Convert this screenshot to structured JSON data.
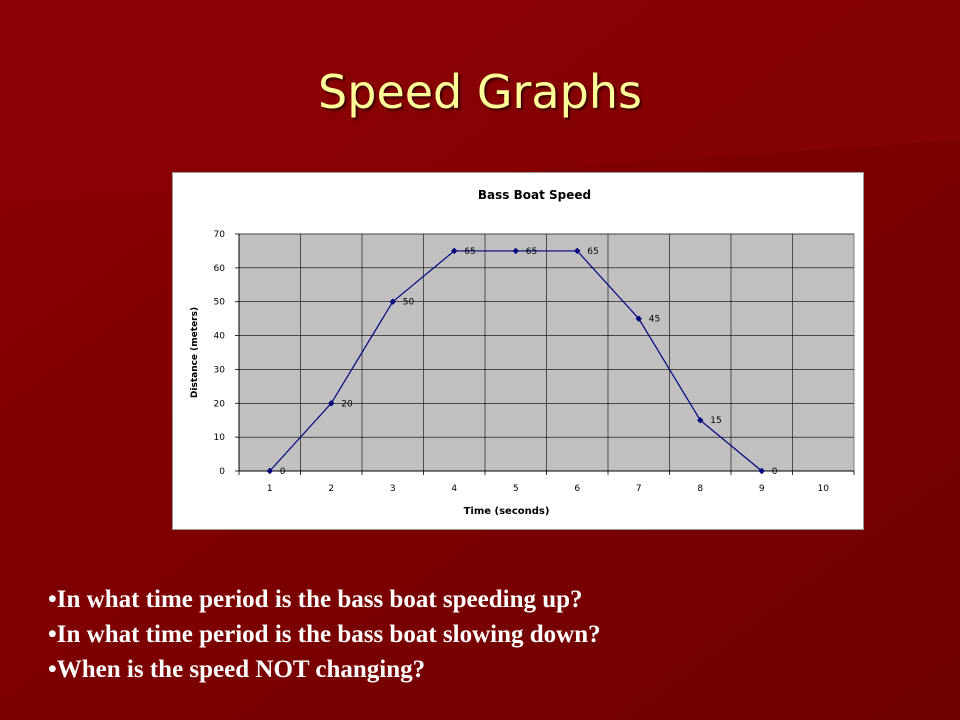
{
  "slide": {
    "title": "Speed Graphs",
    "questions": [
      "In what time period is the bass boat speeding up?",
      "In what time period is the bass boat slowing down?",
      "When is the speed NOT changing?"
    ]
  },
  "colors": {
    "background": "#7a0000",
    "title": "#ffff99",
    "plot_area": "#c0c0c0",
    "series": "#000080"
  },
  "chart_data": {
    "type": "line",
    "title": "Bass Boat Speed",
    "xlabel": "Time (seconds)",
    "ylabel": "Distance (meters)",
    "categories": [
      "1",
      "2",
      "3",
      "4",
      "5",
      "6",
      "7",
      "8",
      "9",
      "10"
    ],
    "series": [
      {
        "values": [
          0,
          20,
          50,
          65,
          65,
          65,
          45,
          15,
          0,
          null
        ]
      }
    ],
    "data_labels": [
      "0",
      "20",
      "50",
      "65",
      "65",
      "65",
      "45",
      "15",
      "0"
    ],
    "ylim": [
      0,
      70
    ],
    "yticks": [
      0,
      10,
      20,
      30,
      40,
      50,
      60,
      70
    ],
    "grid": true,
    "legend": "none"
  }
}
